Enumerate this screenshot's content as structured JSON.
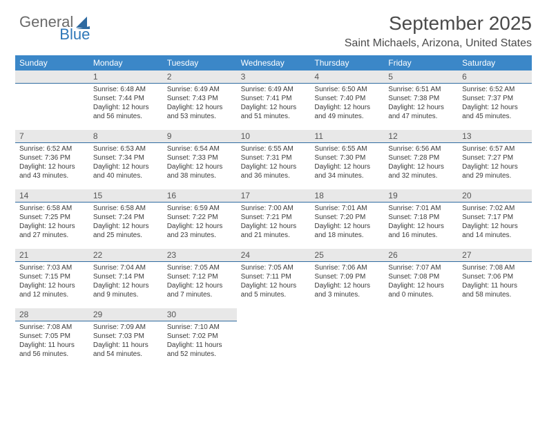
{
  "brand": {
    "word1": "General",
    "word2": "Blue",
    "icon_color": "#2e6aa0"
  },
  "title": "September 2025",
  "location": "Saint Michaels, Arizona, United States",
  "colors": {
    "header_bg": "#3b87c8",
    "header_text": "#ffffff",
    "daynum_bg": "#e8e8e8",
    "daynum_border": "#2e6aa0"
  },
  "weekdays": [
    "Sunday",
    "Monday",
    "Tuesday",
    "Wednesday",
    "Thursday",
    "Friday",
    "Saturday"
  ],
  "weeks": [
    [
      {
        "n": "",
        "sr": "",
        "ss": "",
        "d1": "",
        "d2": "",
        "empty": true
      },
      {
        "n": "1",
        "sr": "Sunrise: 6:48 AM",
        "ss": "Sunset: 7:44 PM",
        "d1": "Daylight: 12 hours",
        "d2": "and 56 minutes."
      },
      {
        "n": "2",
        "sr": "Sunrise: 6:49 AM",
        "ss": "Sunset: 7:43 PM",
        "d1": "Daylight: 12 hours",
        "d2": "and 53 minutes."
      },
      {
        "n": "3",
        "sr": "Sunrise: 6:49 AM",
        "ss": "Sunset: 7:41 PM",
        "d1": "Daylight: 12 hours",
        "d2": "and 51 minutes."
      },
      {
        "n": "4",
        "sr": "Sunrise: 6:50 AM",
        "ss": "Sunset: 7:40 PM",
        "d1": "Daylight: 12 hours",
        "d2": "and 49 minutes."
      },
      {
        "n": "5",
        "sr": "Sunrise: 6:51 AM",
        "ss": "Sunset: 7:38 PM",
        "d1": "Daylight: 12 hours",
        "d2": "and 47 minutes."
      },
      {
        "n": "6",
        "sr": "Sunrise: 6:52 AM",
        "ss": "Sunset: 7:37 PM",
        "d1": "Daylight: 12 hours",
        "d2": "and 45 minutes."
      }
    ],
    [
      {
        "n": "7",
        "sr": "Sunrise: 6:52 AM",
        "ss": "Sunset: 7:36 PM",
        "d1": "Daylight: 12 hours",
        "d2": "and 43 minutes."
      },
      {
        "n": "8",
        "sr": "Sunrise: 6:53 AM",
        "ss": "Sunset: 7:34 PM",
        "d1": "Daylight: 12 hours",
        "d2": "and 40 minutes."
      },
      {
        "n": "9",
        "sr": "Sunrise: 6:54 AM",
        "ss": "Sunset: 7:33 PM",
        "d1": "Daylight: 12 hours",
        "d2": "and 38 minutes."
      },
      {
        "n": "10",
        "sr": "Sunrise: 6:55 AM",
        "ss": "Sunset: 7:31 PM",
        "d1": "Daylight: 12 hours",
        "d2": "and 36 minutes."
      },
      {
        "n": "11",
        "sr": "Sunrise: 6:55 AM",
        "ss": "Sunset: 7:30 PM",
        "d1": "Daylight: 12 hours",
        "d2": "and 34 minutes."
      },
      {
        "n": "12",
        "sr": "Sunrise: 6:56 AM",
        "ss": "Sunset: 7:28 PM",
        "d1": "Daylight: 12 hours",
        "d2": "and 32 minutes."
      },
      {
        "n": "13",
        "sr": "Sunrise: 6:57 AM",
        "ss": "Sunset: 7:27 PM",
        "d1": "Daylight: 12 hours",
        "d2": "and 29 minutes."
      }
    ],
    [
      {
        "n": "14",
        "sr": "Sunrise: 6:58 AM",
        "ss": "Sunset: 7:25 PM",
        "d1": "Daylight: 12 hours",
        "d2": "and 27 minutes."
      },
      {
        "n": "15",
        "sr": "Sunrise: 6:58 AM",
        "ss": "Sunset: 7:24 PM",
        "d1": "Daylight: 12 hours",
        "d2": "and 25 minutes."
      },
      {
        "n": "16",
        "sr": "Sunrise: 6:59 AM",
        "ss": "Sunset: 7:22 PM",
        "d1": "Daylight: 12 hours",
        "d2": "and 23 minutes."
      },
      {
        "n": "17",
        "sr": "Sunrise: 7:00 AM",
        "ss": "Sunset: 7:21 PM",
        "d1": "Daylight: 12 hours",
        "d2": "and 21 minutes."
      },
      {
        "n": "18",
        "sr": "Sunrise: 7:01 AM",
        "ss": "Sunset: 7:20 PM",
        "d1": "Daylight: 12 hours",
        "d2": "and 18 minutes."
      },
      {
        "n": "19",
        "sr": "Sunrise: 7:01 AM",
        "ss": "Sunset: 7:18 PM",
        "d1": "Daylight: 12 hours",
        "d2": "and 16 minutes."
      },
      {
        "n": "20",
        "sr": "Sunrise: 7:02 AM",
        "ss": "Sunset: 7:17 PM",
        "d1": "Daylight: 12 hours",
        "d2": "and 14 minutes."
      }
    ],
    [
      {
        "n": "21",
        "sr": "Sunrise: 7:03 AM",
        "ss": "Sunset: 7:15 PM",
        "d1": "Daylight: 12 hours",
        "d2": "and 12 minutes."
      },
      {
        "n": "22",
        "sr": "Sunrise: 7:04 AM",
        "ss": "Sunset: 7:14 PM",
        "d1": "Daylight: 12 hours",
        "d2": "and 9 minutes."
      },
      {
        "n": "23",
        "sr": "Sunrise: 7:05 AM",
        "ss": "Sunset: 7:12 PM",
        "d1": "Daylight: 12 hours",
        "d2": "and 7 minutes."
      },
      {
        "n": "24",
        "sr": "Sunrise: 7:05 AM",
        "ss": "Sunset: 7:11 PM",
        "d1": "Daylight: 12 hours",
        "d2": "and 5 minutes."
      },
      {
        "n": "25",
        "sr": "Sunrise: 7:06 AM",
        "ss": "Sunset: 7:09 PM",
        "d1": "Daylight: 12 hours",
        "d2": "and 3 minutes."
      },
      {
        "n": "26",
        "sr": "Sunrise: 7:07 AM",
        "ss": "Sunset: 7:08 PM",
        "d1": "Daylight: 12 hours",
        "d2": "and 0 minutes."
      },
      {
        "n": "27",
        "sr": "Sunrise: 7:08 AM",
        "ss": "Sunset: 7:06 PM",
        "d1": "Daylight: 11 hours",
        "d2": "and 58 minutes."
      }
    ],
    [
      {
        "n": "28",
        "sr": "Sunrise: 7:08 AM",
        "ss": "Sunset: 7:05 PM",
        "d1": "Daylight: 11 hours",
        "d2": "and 56 minutes."
      },
      {
        "n": "29",
        "sr": "Sunrise: 7:09 AM",
        "ss": "Sunset: 7:03 PM",
        "d1": "Daylight: 11 hours",
        "d2": "and 54 minutes."
      },
      {
        "n": "30",
        "sr": "Sunrise: 7:10 AM",
        "ss": "Sunset: 7:02 PM",
        "d1": "Daylight: 11 hours",
        "d2": "and 52 minutes."
      },
      {
        "n": "",
        "sr": "",
        "ss": "",
        "d1": "",
        "d2": "",
        "blank": true
      },
      {
        "n": "",
        "sr": "",
        "ss": "",
        "d1": "",
        "d2": "",
        "blank": true
      },
      {
        "n": "",
        "sr": "",
        "ss": "",
        "d1": "",
        "d2": "",
        "blank": true
      },
      {
        "n": "",
        "sr": "",
        "ss": "",
        "d1": "",
        "d2": "",
        "blank": true
      }
    ]
  ]
}
